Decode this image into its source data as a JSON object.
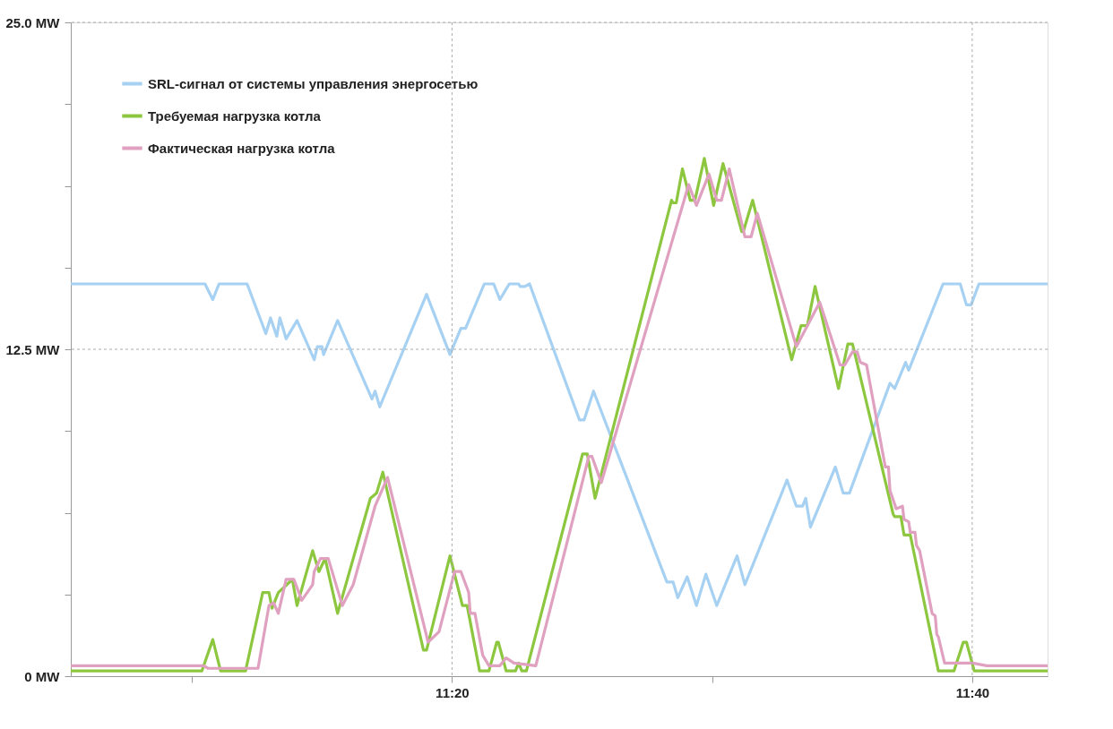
{
  "chart_data": {
    "type": "line",
    "xlim": [
      11.089,
      11.715
    ],
    "xticks": [
      {
        "value": 11.1667,
        "label": null
      },
      {
        "value": 11.3333,
        "label": "11:20"
      },
      {
        "value": 11.5,
        "label": null
      },
      {
        "value": 11.6667,
        "label": "11:40"
      }
    ],
    "ylim": [
      0,
      25
    ],
    "yticks": [
      {
        "value": 0,
        "label": "0 MW"
      },
      {
        "value": 3.125,
        "label": null
      },
      {
        "value": 6.25,
        "label": null
      },
      {
        "value": 9.375,
        "label": null
      },
      {
        "value": 12.5,
        "label": "12.5 MW"
      },
      {
        "value": 15.625,
        "label": null
      },
      {
        "value": 18.75,
        "label": null
      },
      {
        "value": 21.875,
        "label": null
      },
      {
        "value": 25,
        "label": "25.0 MW"
      }
    ],
    "grid": true,
    "legend": "top left",
    "marker": "none",
    "line_style": "solid",
    "series": [
      {
        "name": "SRL-сигнал от системы управления энергосетью",
        "color": "#a6d1f2",
        "x": [
          11.089,
          11.175,
          11.18,
          11.184,
          11.202,
          11.214,
          11.217,
          11.221,
          11.223,
          11.227,
          11.234,
          11.245,
          11.247,
          11.25,
          11.251,
          11.26,
          11.282,
          11.284,
          11.287,
          11.317,
          11.332,
          11.339,
          11.342,
          11.354,
          11.36,
          11.364,
          11.37,
          11.376,
          11.377,
          11.38,
          11.383,
          11.415,
          11.418,
          11.424,
          11.471,
          11.475,
          11.478,
          11.484,
          11.49,
          11.496,
          11.503,
          11.516,
          11.521,
          11.548,
          11.554,
          11.558,
          11.56,
          11.563,
          11.579,
          11.584,
          11.588,
          11.614,
          11.617,
          11.624,
          11.626,
          11.648,
          11.659,
          11.663,
          11.666,
          11.671,
          11.715
        ],
        "values": [
          15.0,
          15.0,
          14.4,
          15.0,
          15.0,
          13.1,
          13.7,
          13.0,
          13.7,
          12.9,
          13.6,
          12.1,
          12.6,
          12.6,
          12.3,
          13.6,
          10.6,
          10.9,
          10.3,
          14.6,
          12.3,
          13.3,
          13.3,
          15.0,
          15.0,
          14.4,
          15.0,
          15.0,
          14.9,
          14.9,
          15.0,
          9.8,
          9.8,
          10.9,
          3.6,
          3.6,
          3.0,
          3.8,
          2.7,
          3.9,
          2.7,
          4.6,
          3.5,
          7.5,
          6.5,
          6.5,
          6.8,
          5.7,
          8.0,
          7.0,
          7.0,
          11.2,
          11.0,
          12.0,
          11.7,
          15.0,
          15.0,
          14.2,
          14.2,
          15.0,
          15.0
        ]
      },
      {
        "name": "Требуемая нагрузка котла",
        "color": "#8dc63f",
        "x": [
          11.089,
          11.173,
          11.18,
          11.185,
          11.201,
          11.212,
          11.216,
          11.218,
          11.222,
          11.231,
          11.234,
          11.244,
          11.248,
          11.252,
          11.26,
          11.281,
          11.285,
          11.289,
          11.315,
          11.317,
          11.332,
          11.34,
          11.343,
          11.351,
          11.357,
          11.362,
          11.363,
          11.368,
          11.374,
          11.376,
          11.378,
          11.381,
          11.417,
          11.42,
          11.425,
          11.474,
          11.475,
          11.477,
          11.481,
          11.486,
          11.489,
          11.495,
          11.501,
          11.507,
          11.519,
          11.52,
          11.526,
          11.551,
          11.557,
          11.561,
          11.566,
          11.581,
          11.587,
          11.59,
          11.616,
          11.617,
          11.621,
          11.623,
          11.627,
          11.645,
          11.655,
          11.661,
          11.663,
          11.668,
          11.715
        ],
        "values": [
          0.2,
          0.2,
          1.4,
          0.2,
          0.2,
          3.2,
          3.2,
          2.6,
          3.2,
          3.7,
          2.7,
          4.8,
          4.0,
          4.5,
          2.4,
          6.8,
          7.0,
          7.8,
          1.0,
          1.0,
          4.6,
          2.7,
          2.7,
          0.2,
          0.2,
          1.3,
          1.3,
          0.2,
          0.2,
          0.5,
          0.2,
          0.2,
          8.5,
          8.5,
          6.8,
          18.2,
          18.1,
          18.1,
          19.4,
          18.2,
          18.2,
          19.8,
          18.0,
          19.6,
          17.0,
          17.0,
          18.2,
          12.1,
          13.4,
          13.4,
          14.9,
          11.0,
          12.7,
          12.7,
          6.2,
          6.1,
          6.1,
          5.4,
          5.4,
          0.2,
          0.2,
          1.3,
          1.3,
          0.2,
          0.2
        ]
      },
      {
        "name": "Фактическая нагрузка котла",
        "color": "#e0a0bf",
        "x": [
          11.089,
          11.174,
          11.177,
          11.209,
          11.216,
          11.219,
          11.222,
          11.227,
          11.232,
          11.237,
          11.244,
          11.245,
          11.249,
          11.254,
          11.263,
          11.27,
          11.284,
          11.292,
          11.318,
          11.325,
          11.335,
          11.339,
          11.344,
          11.345,
          11.348,
          11.353,
          11.357,
          11.364,
          11.368,
          11.373,
          11.387,
          11.421,
          11.423,
          11.429,
          11.485,
          11.49,
          11.498,
          11.503,
          11.506,
          11.511,
          11.521,
          11.525,
          11.529,
          11.554,
          11.569,
          11.582,
          11.585,
          11.59,
          11.593,
          11.595,
          11.599,
          11.611,
          11.613,
          11.614,
          11.618,
          11.622,
          11.623,
          11.626,
          11.627,
          11.63,
          11.631,
          11.633,
          11.641,
          11.643,
          11.644,
          11.645,
          11.649,
          11.667,
          11.676,
          11.715
        ],
        "values": [
          0.4,
          0.4,
          0.3,
          0.3,
          2.7,
          2.8,
          2.4,
          3.7,
          3.7,
          2.9,
          3.5,
          4.0,
          4.5,
          4.5,
          2.7,
          3.5,
          6.5,
          7.6,
          1.3,
          1.7,
          4.0,
          4.0,
          3.2,
          2.4,
          2.4,
          0.8,
          0.4,
          0.4,
          0.7,
          0.5,
          0.4,
          8.4,
          8.4,
          7.4,
          18.8,
          18.0,
          19.2,
          18.2,
          18.2,
          19.4,
          16.8,
          16.8,
          17.7,
          12.6,
          14.3,
          11.9,
          11.9,
          12.4,
          12.4,
          12.0,
          11.9,
          8.0,
          8.0,
          7.1,
          6.4,
          6.5,
          6.0,
          5.9,
          5.5,
          5.5,
          5.0,
          4.8,
          2.4,
          2.3,
          1.6,
          1.5,
          0.5,
          0.5,
          0.4,
          0.4
        ]
      }
    ]
  }
}
